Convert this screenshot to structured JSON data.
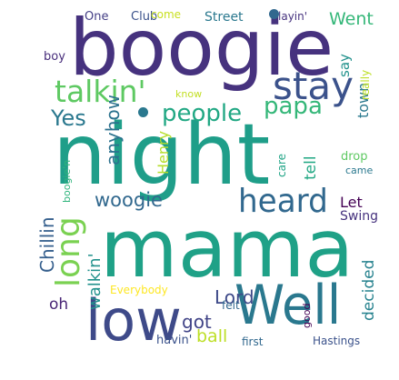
{
  "words": [
    {
      "text": "boogie",
      "color": "#46327e"
    },
    {
      "text": "night",
      "color": "#1f9e89"
    },
    {
      "text": "mama",
      "color": "#1fa187"
    },
    {
      "text": "low",
      "color": "#3e4a89"
    },
    {
      "text": "Well",
      "color": "#2a788e"
    },
    {
      "text": "heard",
      "color": "#31688e"
    },
    {
      "text": "stay",
      "color": "#3b528b"
    },
    {
      "text": "talkin'",
      "color": "#5ec962"
    },
    {
      "text": "long",
      "color": "#7ad151"
    },
    {
      "text": "people",
      "color": "#22a884"
    },
    {
      "text": "papa",
      "color": "#35b779"
    },
    {
      "text": "Yes",
      "color": "#2a788e"
    },
    {
      "text": "woogie",
      "color": "#31688e"
    },
    {
      "text": "got",
      "color": "#414487"
    },
    {
      "text": "Lord",
      "color": "#3e4a89"
    },
    {
      "text": "Went",
      "color": "#35b779"
    },
    {
      "text": "ball",
      "color": "#bddf26"
    },
    {
      "text": "oh",
      "color": "#482475"
    },
    {
      "text": "Let",
      "color": "#440154"
    },
    {
      "text": "anyhow",
      "color": "#2c728e"
    },
    {
      "text": "Henry",
      "color": "#b5de2b"
    },
    {
      "text": "Chillin",
      "color": "#355f8d"
    },
    {
      "text": "walkin'",
      "color": "#21918c"
    },
    {
      "text": "decided",
      "color": "#26828e"
    },
    {
      "text": "town",
      "color": "#2a788e"
    },
    {
      "text": "say",
      "color": "#21918c"
    },
    {
      "text": "tell",
      "color": "#22a884"
    },
    {
      "text": "Swing",
      "color": "#46327e"
    },
    {
      "text": "One",
      "color": "#433e85"
    },
    {
      "text": "Club",
      "color": "#3b528b"
    },
    {
      "text": "come",
      "color": "#c8e020"
    },
    {
      "text": "Street",
      "color": "#2a788e"
    },
    {
      "text": "layin'",
      "color": "#46327e"
    },
    {
      "text": "boy",
      "color": "#472d7b"
    },
    {
      "text": "really",
      "color": "#bddf26"
    },
    {
      "text": "know",
      "color": "#c2df23"
    },
    {
      "text": "boogie'n",
      "color": "#2fb47c"
    },
    {
      "text": "care",
      "color": "#20a486"
    },
    {
      "text": "drop",
      "color": "#5ec962"
    },
    {
      "text": "came",
      "color": "#2a788e"
    },
    {
      "text": "Everybody",
      "color": "#fde725"
    },
    {
      "text": "felt",
      "color": "#31688e"
    },
    {
      "text": "good",
      "color": "#440154"
    },
    {
      "text": "havin'",
      "color": "#3b528b"
    },
    {
      "text": "first",
      "color": "#31688e"
    },
    {
      "text": "Hastings",
      "color": "#3b528b"
    },
    {
      "text": "",
      "color": "#2a788e",
      "shape": "dot"
    },
    {
      "text": "",
      "color": "#31688e",
      "shape": "dot"
    }
  ]
}
